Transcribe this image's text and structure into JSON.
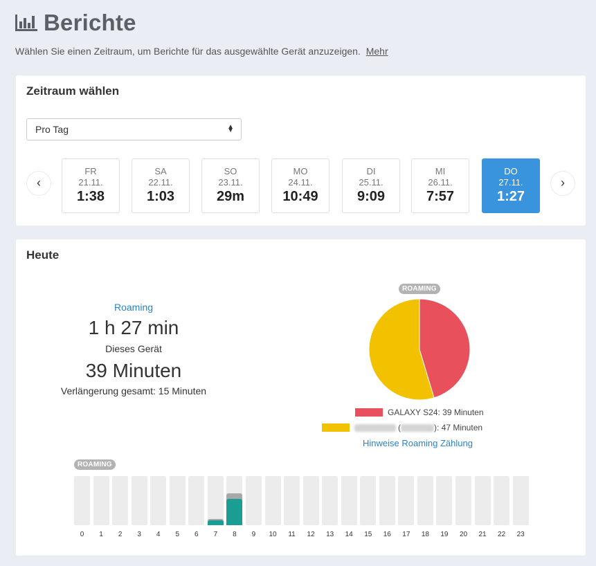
{
  "page": {
    "title": "Berichte",
    "subtitle": "Wählen Sie einen Zeitraum, um Berichte für das ausgewählte Gerät anzuzeigen.",
    "more_link": "Mehr"
  },
  "period_card": {
    "title": "Zeitraum wählen",
    "select_value": "Pro Tag",
    "prev_icon": "‹",
    "next_icon": "›",
    "days": [
      {
        "name": "FR",
        "date": "21.11.",
        "value": "1:38",
        "active": false
      },
      {
        "name": "SA",
        "date": "22.11.",
        "value": "1:03",
        "active": false
      },
      {
        "name": "SO",
        "date": "23.11.",
        "value": "29m",
        "active": false
      },
      {
        "name": "MO",
        "date": "24.11.",
        "value": "10:49",
        "active": false
      },
      {
        "name": "DI",
        "date": "25.11.",
        "value": "9:09",
        "active": false
      },
      {
        "name": "MI",
        "date": "26.11.",
        "value": "7:57",
        "active": false
      },
      {
        "name": "DO",
        "date": "27.11.",
        "value": "1:27",
        "active": true
      }
    ]
  },
  "today_card": {
    "title": "Heute",
    "roaming_label": "Roaming",
    "total_time": "1 h 27 min",
    "device_label": "Dieses Gerät",
    "device_time": "39 Minuten",
    "extension_text": "Verlängerung gesamt: 15 Minuten",
    "pie_badge": "ROAMING",
    "legend": [
      {
        "label": "GALAXY S24: 39 Minuten",
        "color": "#e8505b"
      },
      {
        "label": "): 47 Minuten",
        "prefix": "(",
        "color": "#f2c200"
      }
    ],
    "hint_link": "Hinweise Roaming Zählung",
    "bars_badge": "ROAMING"
  },
  "chart_data": [
    {
      "type": "pie",
      "title": "ROAMING",
      "categories": [
        "GALAXY S24",
        "anderes Gerät"
      ],
      "values": [
        39,
        47
      ],
      "units": "Minuten",
      "colors": [
        "#e8505b",
        "#f2c200"
      ]
    },
    {
      "type": "bar",
      "title": "ROAMING",
      "categories": [
        "0",
        "1",
        "2",
        "3",
        "4",
        "5",
        "6",
        "7",
        "8",
        "9",
        "10",
        "11",
        "12",
        "13",
        "14",
        "15",
        "16",
        "17",
        "18",
        "19",
        "20",
        "21",
        "22",
        "23"
      ],
      "ylim": [
        0,
        60
      ],
      "series": [
        {
          "values": [
            0,
            0,
            0,
            0,
            0,
            0,
            0,
            6,
            32,
            0,
            0,
            0,
            0,
            0,
            0,
            0,
            0,
            0,
            0,
            0,
            0,
            0,
            0,
            0
          ],
          "color": "#1a9e94"
        },
        {
          "values": [
            0,
            0,
            0,
            0,
            0,
            0,
            0,
            2,
            7,
            0,
            0,
            0,
            0,
            0,
            0,
            0,
            0,
            0,
            0,
            0,
            0,
            0,
            0,
            0
          ],
          "color": "#a8a8a8"
        }
      ]
    }
  ]
}
